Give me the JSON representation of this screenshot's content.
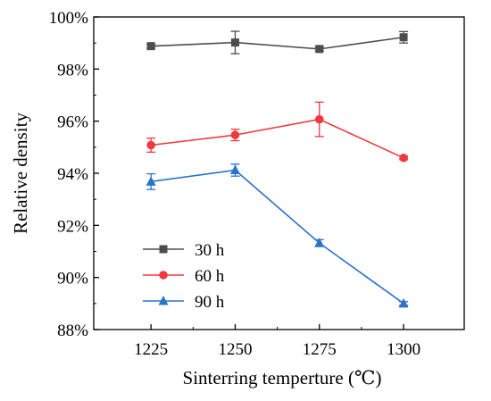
{
  "chart_data": {
    "type": "line",
    "xlabel": "Sinterring temperture (℃)",
    "ylabel": "Relative density",
    "x": [
      1225,
      1250,
      1275,
      1300
    ],
    "x_ticks": [
      "1225",
      "1250",
      "1275",
      "1300"
    ],
    "xlim": [
      1208,
      1318
    ],
    "ylim": [
      88,
      100
    ],
    "y_ticks": [
      "88%",
      "90%",
      "92%",
      "94%",
      "96%",
      "98%",
      "100%"
    ],
    "grid": false,
    "legend_position": "lower-left",
    "series": [
      {
        "name": "30 h",
        "color": "#4d4d4d",
        "marker": "square",
        "values": [
          98.88,
          99.02,
          98.77,
          99.22
        ],
        "errors": [
          0.08,
          0.43,
          0.08,
          0.22
        ]
      },
      {
        "name": "60 h",
        "color": "#f0393f",
        "marker": "circle",
        "values": [
          95.08,
          95.47,
          96.07,
          94.59
        ],
        "errors": [
          0.27,
          0.22,
          0.66,
          0.07
        ]
      },
      {
        "name": "90 h",
        "color": "#2a73c9",
        "marker": "triangle",
        "values": [
          93.68,
          94.12,
          91.32,
          89.0
        ],
        "errors": [
          0.3,
          0.23,
          0.13,
          0.07
        ]
      }
    ]
  }
}
